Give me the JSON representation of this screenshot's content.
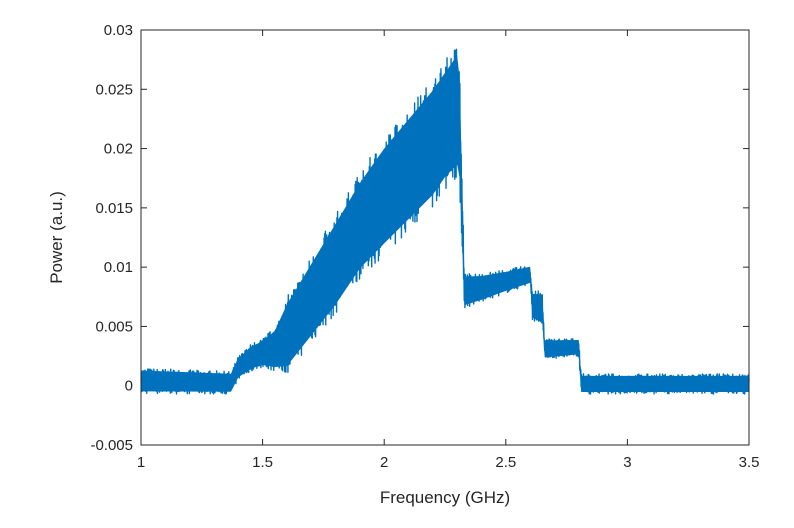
{
  "chart_data": {
    "type": "line",
    "title": "",
    "xlabel": "Frequency (GHz)",
    "ylabel": "Power (a.u.)",
    "xlim": [
      1,
      3.5
    ],
    "ylim": [
      -0.005,
      0.03
    ],
    "xticks": [
      1,
      1.5,
      2,
      2.5,
      3,
      3.5
    ],
    "xtick_labels": [
      "1",
      "1.5",
      "2",
      "2.5",
      "3",
      "3.5"
    ],
    "yticks": [
      -0.005,
      0,
      0.005,
      0.01,
      0.015,
      0.02,
      0.025,
      0.03
    ],
    "ytick_labels": [
      "-0.005",
      "0",
      "0.005",
      "0.01",
      "0.015",
      "0.02",
      "0.025",
      "0.03"
    ],
    "grid": false,
    "legend": "none",
    "series": [
      {
        "color": "#0072BD",
        "x": [
          1.0,
          1.37,
          1.4,
          1.45,
          1.5,
          1.55,
          1.6,
          1.7,
          1.8,
          1.9,
          2.0,
          2.1,
          2.2,
          2.25,
          2.3,
          2.31,
          2.33,
          2.4,
          2.5,
          2.6,
          2.61,
          2.65,
          2.66,
          2.8,
          2.81,
          3.0,
          3.5
        ],
        "upper": [
          0.0015,
          0.0012,
          0.0025,
          0.0035,
          0.004,
          0.005,
          0.0075,
          0.011,
          0.0145,
          0.018,
          0.021,
          0.0235,
          0.026,
          0.0275,
          0.029,
          0.027,
          0.0095,
          0.0095,
          0.0098,
          0.0102,
          0.008,
          0.008,
          0.004,
          0.004,
          0.001,
          0.001,
          0.001
        ],
        "lower": [
          -0.0007,
          -0.0007,
          0.0005,
          0.0012,
          0.0015,
          0.0012,
          0.001,
          0.0035,
          0.006,
          0.009,
          0.011,
          0.013,
          0.015,
          0.0165,
          0.0175,
          0.0165,
          0.0065,
          0.007,
          0.0078,
          0.0085,
          0.0055,
          0.005,
          0.0022,
          0.0025,
          -0.0007,
          -0.0007,
          -0.0007
        ]
      }
    ]
  }
}
